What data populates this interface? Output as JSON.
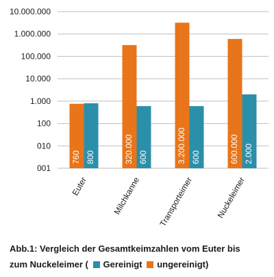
{
  "chart_data": {
    "type": "bar",
    "categories": [
      "Euter",
      "Milchkanne",
      "Transporteimer",
      "Nuckeleimer"
    ],
    "series": [
      {
        "name": "ungereinigt",
        "color": "#E8751A",
        "values": [
          760,
          320000,
          3200000,
          600000
        ],
        "labels": [
          "760",
          "320.000",
          "3.200.000",
          "600.000"
        ]
      },
      {
        "name": "Gereinigt",
        "color": "#2C8FAA",
        "values": [
          800,
          600,
          600,
          2000
        ],
        "labels": [
          "800",
          "600",
          "600",
          "2.000"
        ]
      }
    ],
    "yscale": "log",
    "ylim": [
      1,
      10000000
    ],
    "yticks": [
      1,
      10,
      100,
      1000,
      10000,
      100000,
      1000000,
      10000000
    ],
    "ytick_labels": [
      "001",
      "010",
      "100",
      "1.000",
      "10.000",
      "100.000",
      "1.000.000",
      "10.000.000"
    ],
    "grid": true,
    "title": "",
    "xlabel": "",
    "ylabel": ""
  },
  "caption": {
    "text_line1": "Abb.1: Vergleich der Gesamtkeimzahlen  vom Euter bis",
    "text_line2_prefix": "zum Nuckeleimer (",
    "legend_gereinigt": "Gereinigt",
    "legend_ungereinigt": "ungereinigt)",
    "color_gereinigt": "#2C8FAA",
    "color_ungereinigt": "#E8751A"
  }
}
